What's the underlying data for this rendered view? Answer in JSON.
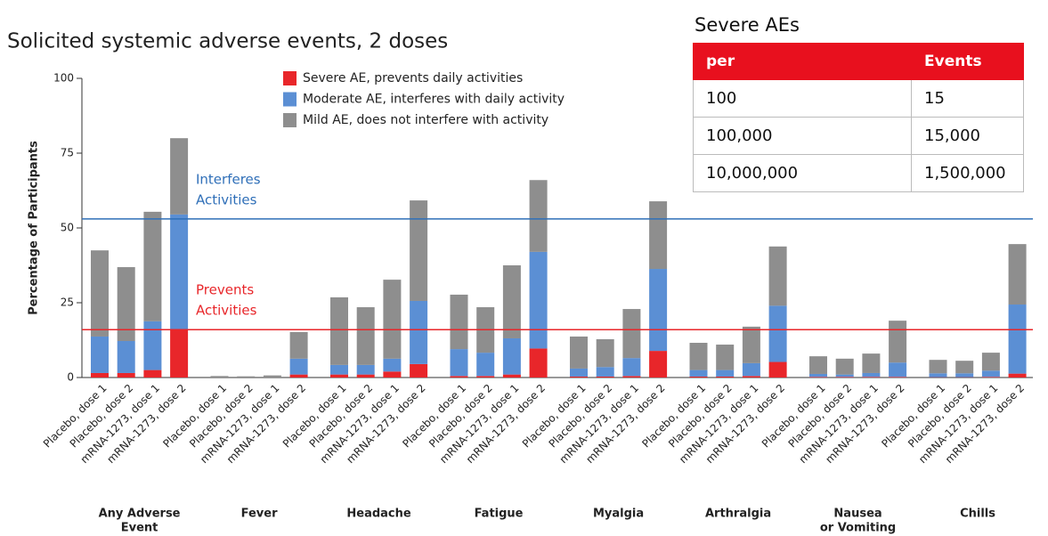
{
  "chart_data": {
    "type": "stacked_bar",
    "title": "Solicited systemic adverse events, 2 doses",
    "y_label": "Percentage of Participants",
    "ylim": [
      0,
      100
    ],
    "yticks": [
      0,
      25,
      50,
      75,
      100
    ],
    "groups": [
      [
        "Any Adverse",
        "Event"
      ],
      [
        "Fever"
      ],
      [
        "Headache"
      ],
      [
        "Fatigue"
      ],
      [
        "Myalgia"
      ],
      [
        "Arthralgia"
      ],
      [
        "Nausea",
        "or Vomiting"
      ],
      [
        "Chills"
      ]
    ],
    "categories": [
      "Placebo, dose 1",
      "Placebo, dose 2",
      "mRNA-1273, dose 1",
      "mRNA-1273, dose 2",
      "Placebo, dose 1",
      "Placebo, dose 2",
      "mRNA-1273, dose 1",
      "mRNA-1273, dose 2",
      "Placebo, dose 1",
      "Placebo, dose 2",
      "mRNA-1273, dose 1",
      "mRNA-1273, dose 2",
      "Placebo, dose 1",
      "Placebo, dose 2",
      "mRNA-1273, dose 1",
      "mRNA-1273, dose 2",
      "Placebo, dose 1",
      "Placebo, dose 2",
      "mRNA-1273, dose 1",
      "mRNA-1273, dose 2",
      "Placebo, dose 1",
      "Placebo, dose 2",
      "mRNA-1273, dose 1",
      "mRNA-1273, dose 2",
      "Placebo, dose 1",
      "Placebo, dose 2",
      "mRNA-1273, dose 1",
      "mRNA-1273, dose 2",
      "Placebo, dose 1",
      "Placebo, dose 2",
      "mRNA-1273, dose 1",
      "mRNA-1273, dose 2"
    ],
    "series": [
      {
        "name": "Severe AE, prevents daily activities",
        "color": "#e8262a",
        "values": [
          1.5,
          1.5,
          2.5,
          16,
          0,
          0,
          0,
          1,
          1,
          1,
          2,
          4.5,
          0.5,
          0.5,
          1,
          9.7,
          0.3,
          0.3,
          0.5,
          8.9,
          0.3,
          0.3,
          0.5,
          5.2,
          0.2,
          0.2,
          0.2,
          0.2,
          0.1,
          0.1,
          0.2,
          1.3
        ]
      },
      {
        "name": "Moderate AE, interferes with daily activity",
        "color": "#5b8fd4",
        "values": [
          12.2,
          10.7,
          16.3,
          38.5,
          0,
          0,
          0,
          5.3,
          3.2,
          3.2,
          4.3,
          21.1,
          9,
          7.8,
          12.1,
          32.3,
          2.7,
          3.2,
          6,
          27.4,
          2.2,
          2.2,
          4.3,
          18.8,
          1,
          0.8,
          1.3,
          4.8,
          1.3,
          1.3,
          2.1,
          23.1
        ]
      },
      {
        "name": "Mild AE, does not interfere with activity",
        "color": "#8e8e8e",
        "values": [
          28.8,
          24.7,
          36.6,
          25.5,
          0.5,
          0.4,
          0.7,
          8.9,
          22.6,
          19.3,
          26.4,
          33.6,
          18.2,
          15.2,
          24.4,
          24,
          10.7,
          9.3,
          16.4,
          22.6,
          9.1,
          8.5,
          12.2,
          19.8,
          5.9,
          5.3,
          6.5,
          14,
          4.5,
          4.2,
          6,
          20.2
        ]
      }
    ],
    "reference_lines": [
      {
        "value": 53,
        "color": "#2f6fb8",
        "label": [
          "Interferes",
          "Activities"
        ]
      },
      {
        "value": 16,
        "color": "#e8262a",
        "label": [
          "Prevents",
          "Activities"
        ]
      }
    ]
  },
  "table": {
    "title": "Severe AEs",
    "header": [
      "per",
      "Events"
    ],
    "rows": [
      [
        "100",
        "15"
      ],
      [
        "100,000",
        "15,000"
      ],
      [
        "10,000,000",
        "1,500,000"
      ]
    ]
  }
}
